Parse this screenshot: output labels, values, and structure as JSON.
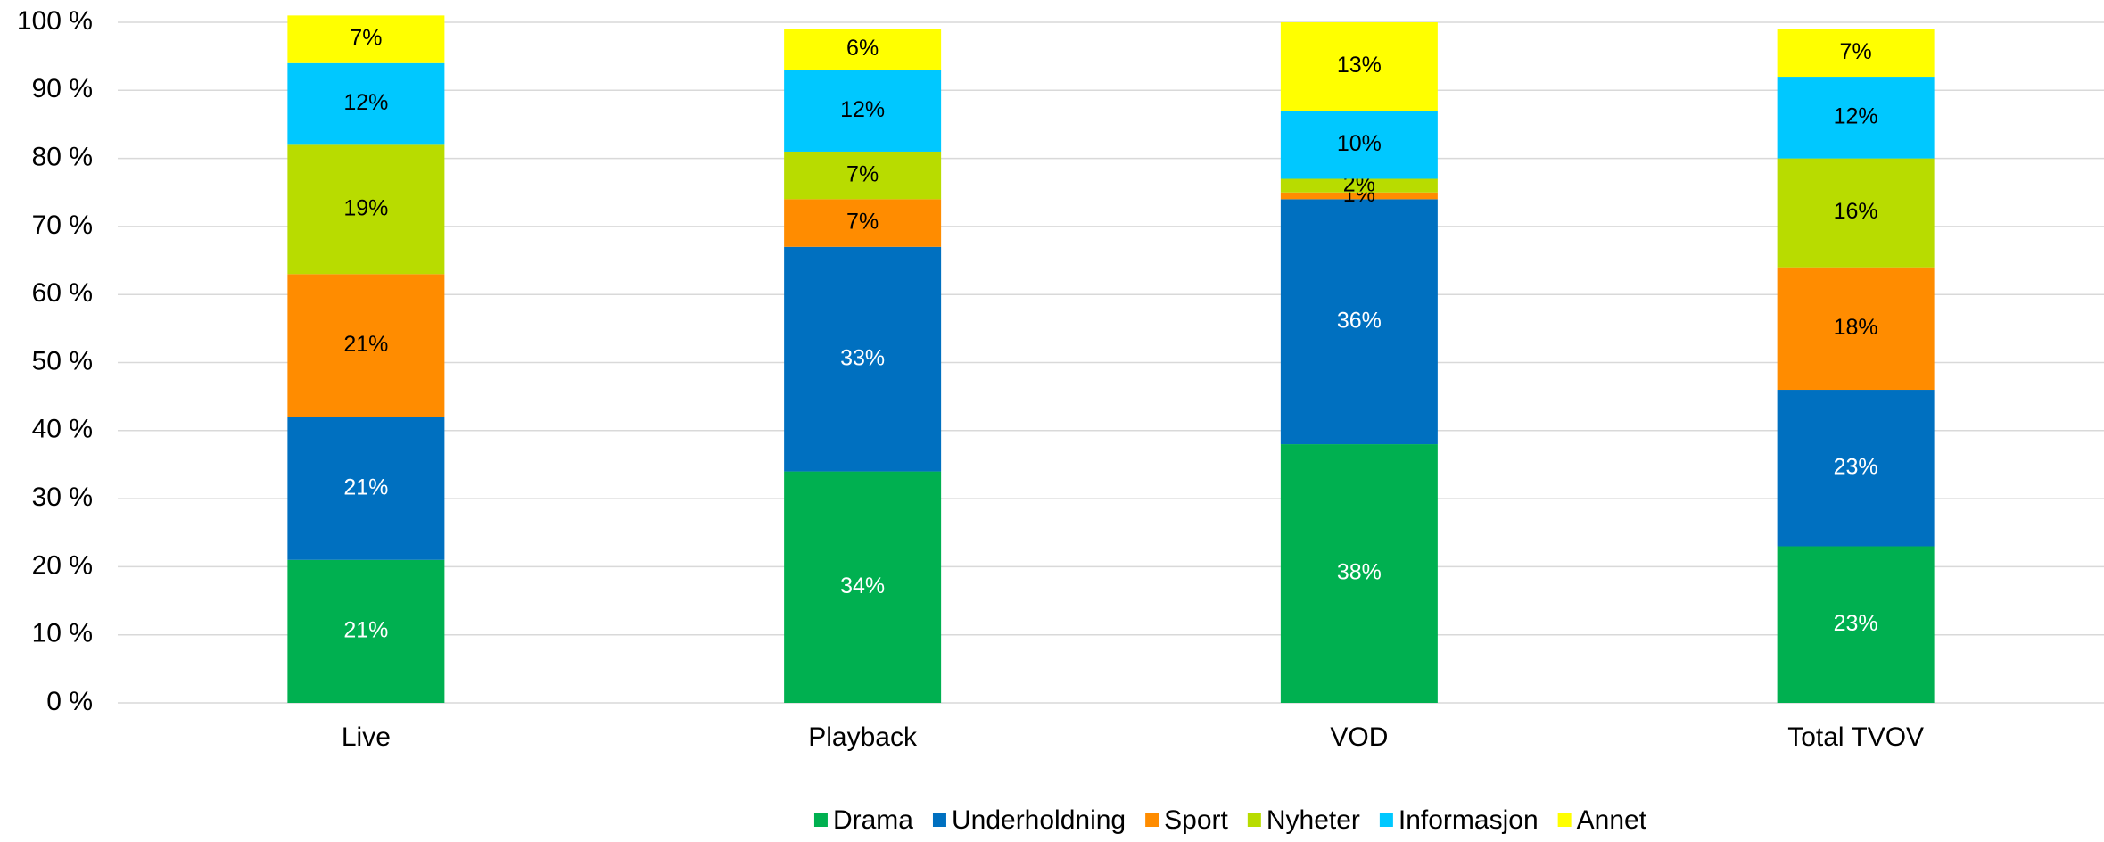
{
  "chart_data": {
    "type": "stacked_bar",
    "categories": [
      "Live",
      "Playback",
      "VOD",
      "Total TVOV"
    ],
    "series": [
      {
        "name": "Drama",
        "color": "#00b050",
        "values": [
          21,
          34,
          38,
          23
        ],
        "value_labels": [
          "21%",
          "34%",
          "38%",
          "23%"
        ]
      },
      {
        "name": "Underholdning",
        "color": "#0070c0",
        "values": [
          21,
          33,
          36,
          23
        ],
        "value_labels": [
          "21%",
          "33%",
          "36%",
          "23%"
        ]
      },
      {
        "name": "Sport",
        "color": "#ff8c00",
        "values": [
          21,
          7,
          1,
          18
        ],
        "value_labels": [
          "21%",
          "7%",
          "1%",
          "18%"
        ]
      },
      {
        "name": "Nyheter",
        "color": "#b8dc00",
        "values": [
          19,
          7,
          2,
          16
        ],
        "value_labels": [
          "19%",
          "7%",
          "2%",
          "16%"
        ]
      },
      {
        "name": "Informasjon",
        "color": "#00c8ff",
        "values": [
          12,
          12,
          10,
          12
        ],
        "value_labels": [
          "12%",
          "12%",
          "10%",
          "12%"
        ]
      },
      {
        "name": "Annet",
        "color": "#ffff00",
        "values": [
          7,
          6,
          13,
          7
        ],
        "value_labels": [
          "7%",
          "6%",
          "13%",
          "7%"
        ]
      }
    ],
    "ylim": [
      0,
      100
    ],
    "yticks": [
      {
        "value": 0,
        "label": "0 %"
      },
      {
        "value": 10,
        "label": "10 %"
      },
      {
        "value": 20,
        "label": "20 %"
      },
      {
        "value": 30,
        "label": "30 %"
      },
      {
        "value": 40,
        "label": "40 %"
      },
      {
        "value": 50,
        "label": "50 %"
      },
      {
        "value": 60,
        "label": "60 %"
      },
      {
        "value": 70,
        "label": "70 %"
      },
      {
        "value": 80,
        "label": "80 %"
      },
      {
        "value": 90,
        "label": "90 %"
      },
      {
        "value": 100,
        "label": "100 %"
      }
    ],
    "grid": true,
    "legend": "bottom"
  }
}
